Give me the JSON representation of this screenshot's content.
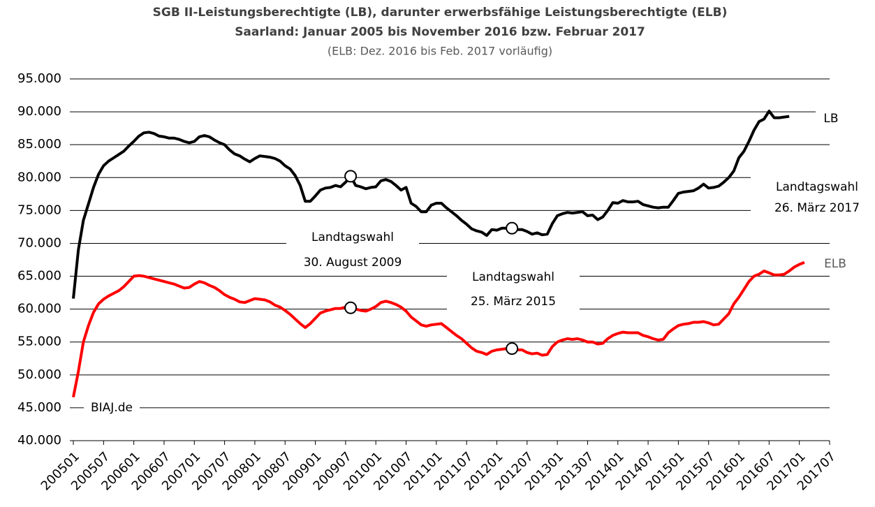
{
  "chart_data": {
    "type": "line",
    "title": "SGB II-Leistungsberechtigte (LB), darunter erwerbsfähige Leistungsberechtigte (ELB)",
    "subtitle": "Saarland: Januar 2005 bis November 2016 bzw. Februar 2017",
    "note": "(ELB: Dez. 2016 bis Feb. 2017 vorläufig)",
    "source": "BIAJ.de",
    "annotations": [
      {
        "lines": [
          "Landtagswahl",
          "30. August 2009"
        ]
      },
      {
        "lines": [
          "Landtagswahl",
          "25. März 2015"
        ]
      },
      {
        "lines": [
          "Landtagswahl",
          "26. März 2017"
        ]
      }
    ],
    "categories": [
      "200501",
      null,
      null,
      null,
      null,
      null,
      "200507",
      null,
      null,
      null,
      null,
      null,
      "200601",
      null,
      null,
      null,
      null,
      null,
      "200607",
      null,
      null,
      null,
      null,
      null,
      "200701",
      null,
      null,
      null,
      null,
      null,
      "200707",
      null,
      null,
      null,
      null,
      null,
      "200801",
      null,
      null,
      null,
      null,
      null,
      "200807",
      null,
      null,
      null,
      null,
      null,
      "200901",
      null,
      null,
      null,
      null,
      null,
      "200907",
      null,
      null,
      null,
      null,
      null,
      "201001",
      null,
      null,
      null,
      null,
      null,
      "201007",
      null,
      null,
      null,
      null,
      null,
      "201101",
      null,
      null,
      null,
      null,
      null,
      "201107",
      null,
      null,
      null,
      null,
      null,
      "201201",
      null,
      null,
      null,
      null,
      null,
      "201207",
      null,
      null,
      null,
      null,
      null,
      "201301",
      null,
      null,
      null,
      null,
      null,
      "201307",
      null,
      null,
      null,
      null,
      null,
      "201401",
      null,
      null,
      null,
      null,
      null,
      "201407",
      null,
      null,
      null,
      null,
      null,
      "201501",
      null,
      null,
      null,
      null,
      null,
      "201507",
      null,
      null,
      null,
      null,
      null,
      "201601",
      null,
      null,
      null,
      null,
      null,
      "201607",
      null,
      null,
      null,
      null,
      null,
      "201701",
      null,
      null,
      null,
      null,
      null,
      "201707"
    ],
    "series": [
      {
        "name": "LB",
        "color": "#000000",
        "label_color": "#000000",
        "values": [
          61600,
          69000,
          73500,
          76000,
          78500,
          80500,
          81800,
          82500,
          83000,
          83500,
          84000,
          84800,
          85500,
          86300,
          86800,
          86900,
          86700,
          86300,
          86200,
          86000,
          86000,
          85800,
          85500,
          85300,
          85500,
          86200,
          86400,
          86200,
          85700,
          85300,
          85000,
          84200,
          83600,
          83300,
          82800,
          82400,
          82900,
          83300,
          83200,
          83100,
          82900,
          82500,
          81800,
          81300,
          80300,
          78800,
          76400,
          76400,
          77200,
          78100,
          78400,
          78500,
          78800,
          78600,
          79300,
          80200,
          78800,
          78600,
          78300,
          78500,
          78600,
          79500,
          79700,
          79400,
          78800,
          78100,
          78500,
          76100,
          75600,
          74800,
          74800,
          75800,
          76100,
          76100,
          75400,
          74800,
          74200,
          73500,
          72900,
          72200,
          71900,
          71700,
          71200,
          72100,
          72000,
          72300,
          72300,
          72300,
          72100,
          72100,
          71800,
          71400,
          71600,
          71300,
          71400,
          73000,
          74200,
          74500,
          74700,
          74600,
          74700,
          74800,
          74200,
          74300,
          73600,
          74000,
          75000,
          76200,
          76100,
          76500,
          76300,
          76300,
          76400,
          75900,
          75700,
          75500,
          75400,
          75500,
          75500,
          76500,
          77600,
          77800,
          77900,
          78000,
          78400,
          79000,
          78400,
          78500,
          78700,
          79300,
          80000,
          81000,
          83000,
          84000,
          85500,
          87200,
          88500,
          88900,
          90100,
          89100,
          89100,
          89200,
          89300,
          null,
          null,
          null,
          null,
          null,
          null,
          null,
          null
        ]
      },
      {
        "name": "ELB",
        "color": "#ff0000",
        "label_color": "#595959",
        "values": [
          46600,
          50500,
          55000,
          57500,
          59500,
          60800,
          61500,
          62000,
          62400,
          62800,
          63400,
          64200,
          65000,
          65100,
          65000,
          64800,
          64600,
          64400,
          64200,
          64000,
          63800,
          63500,
          63200,
          63300,
          63800,
          64200,
          64000,
          63600,
          63300,
          62800,
          62200,
          61800,
          61500,
          61100,
          61000,
          61300,
          61600,
          61500,
          61400,
          61100,
          60600,
          60300,
          59800,
          59200,
          58500,
          57800,
          57200,
          57800,
          58600,
          59400,
          59700,
          59900,
          60100,
          60100,
          60300,
          60200,
          60000,
          59800,
          59700,
          60000,
          60400,
          61000,
          61200,
          61000,
          60700,
          60300,
          59700,
          58800,
          58200,
          57600,
          57400,
          57600,
          57700,
          57800,
          57200,
          56600,
          56000,
          55500,
          54800,
          54100,
          53600,
          53400,
          53100,
          53600,
          53800,
          53900,
          54000,
          54000,
          53800,
          53800,
          53400,
          53200,
          53300,
          53000,
          53100,
          54300,
          55000,
          55300,
          55500,
          55400,
          55500,
          55300,
          55000,
          55000,
          54700,
          54800,
          55500,
          56000,
          56300,
          56500,
          56400,
          56400,
          56400,
          56000,
          55800,
          55500,
          55300,
          55400,
          56400,
          57000,
          57500,
          57700,
          57800,
          58000,
          58000,
          58100,
          57900,
          57600,
          57700,
          58500,
          59300,
          60800,
          61800,
          63000,
          64200,
          65000,
          65300,
          65800,
          65500,
          65200,
          65200,
          65300,
          65800,
          66400,
          66800,
          67100,
          null,
          null,
          null,
          null,
          null
        ]
      }
    ],
    "ylim": [
      40000,
      95000
    ],
    "yticks": [
      {
        "value": 40000,
        "label": "40.000"
      },
      {
        "value": 45000,
        "label": "45.000"
      },
      {
        "value": 50000,
        "label": "50.000"
      },
      {
        "value": 55000,
        "label": "55.000"
      },
      {
        "value": 60000,
        "label": "60.000"
      },
      {
        "value": 65000,
        "label": "65.000"
      },
      {
        "value": 70000,
        "label": "70.000"
      },
      {
        "value": 75000,
        "label": "75.000"
      },
      {
        "value": 80000,
        "label": "80.000"
      },
      {
        "value": 85000,
        "label": "85.000"
      },
      {
        "value": 90000,
        "label": "90.000"
      },
      {
        "value": 95000,
        "label": "95.000"
      }
    ],
    "grid": true
  }
}
